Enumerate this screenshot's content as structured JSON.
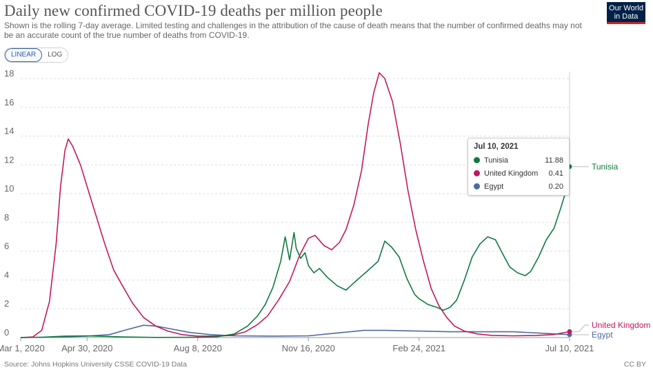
{
  "header": {
    "title": "Daily new confirmed COVID-19 deaths per million people",
    "subtitle": "Shown is the rolling 7-day average. Limited testing and challenges in the attribution of the cause of death means that the number of confirmed deaths may not be an accurate count of the true number of deaths from COVID-19.",
    "logo_line1": "Our World",
    "logo_line2": "in Data"
  },
  "controls": {
    "linear_label": "LINEAR",
    "log_label": "LOG",
    "selected": "LINEAR"
  },
  "tooltip": {
    "date": "Jul 10, 2021",
    "rows": [
      {
        "name": "Tunisia",
        "value": "11.88",
        "color": "#0f7a3f"
      },
      {
        "name": "United Kingdom",
        "value": "0.41",
        "color": "#c2185b"
      },
      {
        "name": "Egypt",
        "value": "0.20",
        "color": "#4c6a9c"
      }
    ]
  },
  "footer": {
    "source": "Source: Johns Hopkins University CSSE COVID-19 Data",
    "license": "CC BY"
  },
  "chart_data": {
    "type": "line",
    "x_axis_type": "date",
    "xlim": [
      "2020-03-01",
      "2021-07-10"
    ],
    "ylim": [
      0,
      18
    ],
    "y_ticks": [
      0,
      2,
      4,
      6,
      8,
      10,
      12,
      14,
      16,
      18
    ],
    "x_ticks": [
      {
        "date": "2020-03-01",
        "label": "Mar 1, 2020"
      },
      {
        "date": "2020-04-30",
        "label": "Apr 30, 2020"
      },
      {
        "date": "2020-08-08",
        "label": "Aug 8, 2020"
      },
      {
        "date": "2020-11-16",
        "label": "Nov 16, 2020"
      },
      {
        "date": "2021-02-24",
        "label": "Feb 24, 2021"
      },
      {
        "date": "2021-07-10",
        "label": "Jul 10, 2021"
      }
    ],
    "grid": true,
    "legend": "right (labels at line ends)",
    "series": [
      {
        "name": "Tunisia",
        "color": "#0f7a3f",
        "end_label": "Tunisia",
        "points": [
          [
            "2020-03-01",
            0
          ],
          [
            "2020-03-20",
            0.02
          ],
          [
            "2020-04-10",
            0.1
          ],
          [
            "2020-04-30",
            0.12
          ],
          [
            "2020-06-01",
            0.05
          ],
          [
            "2020-07-01",
            0.01
          ],
          [
            "2020-08-08",
            0.02
          ],
          [
            "2020-08-25",
            0.05
          ],
          [
            "2020-09-10",
            0.25
          ],
          [
            "2020-09-22",
            0.8
          ],
          [
            "2020-10-01",
            1.5
          ],
          [
            "2020-10-08",
            2.3
          ],
          [
            "2020-10-15",
            3.5
          ],
          [
            "2020-10-22",
            5.3
          ],
          [
            "2020-10-26",
            7.0
          ],
          [
            "2020-10-30",
            5.4
          ],
          [
            "2020-11-03",
            7.3
          ],
          [
            "2020-11-05",
            6.2
          ],
          [
            "2020-11-09",
            5.5
          ],
          [
            "2020-11-13",
            5.9
          ],
          [
            "2020-11-16",
            5.0
          ],
          [
            "2020-11-21",
            4.5
          ],
          [
            "2020-11-26",
            4.8
          ],
          [
            "2020-12-03",
            4.2
          ],
          [
            "2020-12-12",
            3.6
          ],
          [
            "2020-12-20",
            3.3
          ],
          [
            "2020-12-30",
            4.0
          ],
          [
            "2021-01-08",
            4.6
          ],
          [
            "2021-01-18",
            5.3
          ],
          [
            "2021-01-24",
            6.7
          ],
          [
            "2021-01-30",
            6.3
          ],
          [
            "2021-02-06",
            5.6
          ],
          [
            "2021-02-13",
            4.1
          ],
          [
            "2021-02-20",
            3.0
          ],
          [
            "2021-02-24",
            2.7
          ],
          [
            "2021-03-04",
            2.3
          ],
          [
            "2021-03-12",
            2.1
          ],
          [
            "2021-03-18",
            1.9
          ],
          [
            "2021-03-24",
            2.1
          ],
          [
            "2021-03-30",
            2.6
          ],
          [
            "2021-04-06",
            4.0
          ],
          [
            "2021-04-13",
            5.6
          ],
          [
            "2021-04-20",
            6.5
          ],
          [
            "2021-04-27",
            7.0
          ],
          [
            "2021-05-04",
            6.8
          ],
          [
            "2021-05-10",
            5.9
          ],
          [
            "2021-05-17",
            4.9
          ],
          [
            "2021-05-24",
            4.5
          ],
          [
            "2021-05-31",
            4.3
          ],
          [
            "2021-06-05",
            4.6
          ],
          [
            "2021-06-12",
            5.6
          ],
          [
            "2021-06-19",
            6.8
          ],
          [
            "2021-06-26",
            7.6
          ],
          [
            "2021-07-02",
            9.0
          ],
          [
            "2021-07-06",
            10.0
          ],
          [
            "2021-07-10",
            11.88
          ]
        ]
      },
      {
        "name": "United Kingdom",
        "color": "#c2185b",
        "end_label": "United Kingdom",
        "points": [
          [
            "2020-03-01",
            0
          ],
          [
            "2020-03-12",
            0.05
          ],
          [
            "2020-03-20",
            0.5
          ],
          [
            "2020-03-27",
            2.5
          ],
          [
            "2020-04-02",
            6.5
          ],
          [
            "2020-04-06",
            10.5
          ],
          [
            "2020-04-10",
            13.0
          ],
          [
            "2020-04-13",
            13.8
          ],
          [
            "2020-04-17",
            13.3
          ],
          [
            "2020-04-24",
            12.0
          ],
          [
            "2020-04-30",
            10.5
          ],
          [
            "2020-05-08",
            8.5
          ],
          [
            "2020-05-16",
            6.5
          ],
          [
            "2020-05-24",
            4.7
          ],
          [
            "2020-06-01",
            3.6
          ],
          [
            "2020-06-10",
            2.4
          ],
          [
            "2020-06-20",
            1.4
          ],
          [
            "2020-07-01",
            0.8
          ],
          [
            "2020-07-12",
            0.45
          ],
          [
            "2020-07-25",
            0.2
          ],
          [
            "2020-08-08",
            0.1
          ],
          [
            "2020-08-25",
            0.1
          ],
          [
            "2020-09-08",
            0.15
          ],
          [
            "2020-09-20",
            0.4
          ],
          [
            "2020-10-01",
            0.9
          ],
          [
            "2020-10-10",
            1.5
          ],
          [
            "2020-10-20",
            2.6
          ],
          [
            "2020-10-30",
            3.9
          ],
          [
            "2020-11-08",
            5.7
          ],
          [
            "2020-11-16",
            6.9
          ],
          [
            "2020-11-22",
            7.1
          ],
          [
            "2020-11-30",
            6.4
          ],
          [
            "2020-12-07",
            6.1
          ],
          [
            "2020-12-14",
            6.6
          ],
          [
            "2020-12-20",
            7.5
          ],
          [
            "2020-12-27",
            9.2
          ],
          [
            "2021-01-03",
            11.6
          ],
          [
            "2021-01-09",
            14.8
          ],
          [
            "2021-01-14",
            17.0
          ],
          [
            "2021-01-19",
            18.4
          ],
          [
            "2021-01-24",
            18.0
          ],
          [
            "2021-01-31",
            16.4
          ],
          [
            "2021-02-07",
            13.5
          ],
          [
            "2021-02-14",
            10.2
          ],
          [
            "2021-02-21",
            7.5
          ],
          [
            "2021-02-28",
            5.3
          ],
          [
            "2021-03-07",
            3.4
          ],
          [
            "2021-03-14",
            2.2
          ],
          [
            "2021-03-21",
            1.4
          ],
          [
            "2021-03-28",
            0.8
          ],
          [
            "2021-04-06",
            0.45
          ],
          [
            "2021-04-18",
            0.25
          ],
          [
            "2021-05-01",
            0.15
          ],
          [
            "2021-05-20",
            0.12
          ],
          [
            "2021-06-10",
            0.15
          ],
          [
            "2021-06-25",
            0.2
          ],
          [
            "2021-07-10",
            0.41
          ]
        ]
      },
      {
        "name": "Egypt",
        "color": "#4c6a9c",
        "end_label": "Egypt",
        "points": [
          [
            "2020-03-01",
            0
          ],
          [
            "2020-04-10",
            0.05
          ],
          [
            "2020-04-30",
            0.1
          ],
          [
            "2020-05-20",
            0.2
          ],
          [
            "2020-06-05",
            0.55
          ],
          [
            "2020-06-20",
            0.85
          ],
          [
            "2020-07-01",
            0.8
          ],
          [
            "2020-07-15",
            0.6
          ],
          [
            "2020-08-01",
            0.35
          ],
          [
            "2020-08-20",
            0.2
          ],
          [
            "2020-09-10",
            0.12
          ],
          [
            "2020-10-15",
            0.1
          ],
          [
            "2020-11-16",
            0.12
          ],
          [
            "2020-12-10",
            0.3
          ],
          [
            "2021-01-05",
            0.5
          ],
          [
            "2021-01-25",
            0.5
          ],
          [
            "2021-02-24",
            0.45
          ],
          [
            "2021-03-25",
            0.4
          ],
          [
            "2021-04-25",
            0.4
          ],
          [
            "2021-05-20",
            0.4
          ],
          [
            "2021-06-15",
            0.3
          ],
          [
            "2021-07-10",
            0.2
          ]
        ]
      }
    ]
  }
}
